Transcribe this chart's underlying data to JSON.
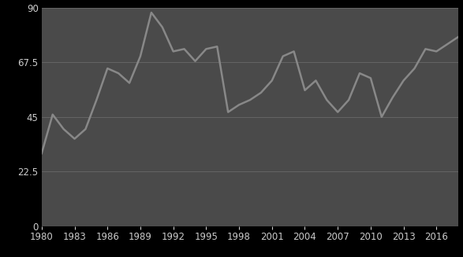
{
  "years": [
    1980,
    1981,
    1982,
    1983,
    1984,
    1985,
    1986,
    1987,
    1988,
    1989,
    1990,
    1991,
    1992,
    1993,
    1994,
    1995,
    1996,
    1997,
    1998,
    1999,
    2000,
    2001,
    2002,
    2003,
    2004,
    2005,
    2006,
    2007,
    2008,
    2009,
    2010,
    2011,
    2012,
    2013,
    2014,
    2015,
    2016,
    2017,
    2018
  ],
  "values": [
    30,
    46,
    40,
    36,
    40,
    52,
    65,
    63,
    59,
    70,
    88,
    82,
    72,
    73,
    68,
    73,
    74,
    47,
    50,
    52,
    55,
    60,
    70,
    72,
    56,
    60,
    52,
    47,
    52,
    63,
    61,
    45,
    53,
    60,
    65,
    73,
    72,
    75,
    78
  ],
  "line_color": "#888888",
  "bg_color": "#4a4a4a",
  "fig_bg_color": "#000000",
  "grid_color": "#888888",
  "text_color": "#cccccc",
  "ylim": [
    0,
    90
  ],
  "yticks": [
    0,
    22.5,
    45,
    67.5,
    90
  ],
  "xticks": [
    1980,
    1983,
    1986,
    1989,
    1992,
    1995,
    1998,
    2001,
    2004,
    2007,
    2010,
    2013,
    2016
  ],
  "tick_fontsize": 8.5,
  "line_width": 1.8
}
